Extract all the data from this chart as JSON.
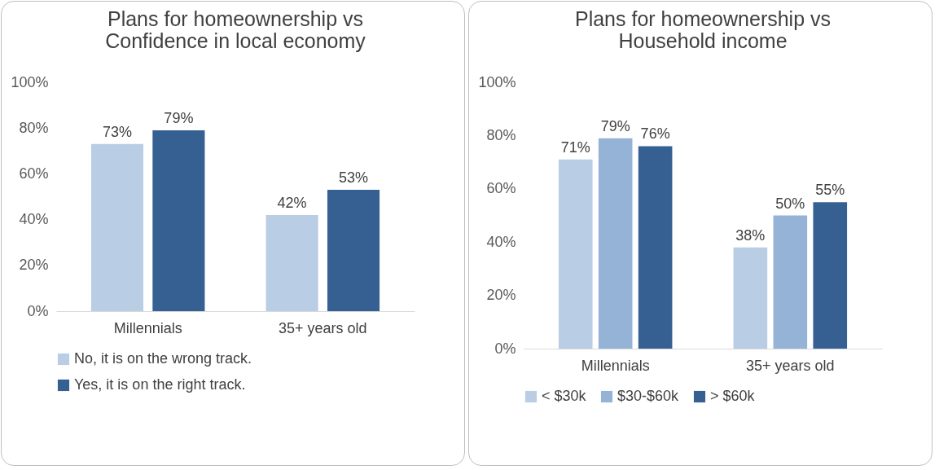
{
  "chart_data": [
    {
      "type": "bar",
      "title": "Plans for homeownership vs\nConfidence in local economy",
      "categories": [
        "Millennials",
        "35+ years old"
      ],
      "series": [
        {
          "name": "No, it is on the wrong track.",
          "color": "#b9cde5",
          "values": [
            73,
            42
          ],
          "value_labels": [
            "73%",
            "42%"
          ]
        },
        {
          "name": "Yes, it is on the right track.",
          "color": "#376092",
          "values": [
            79,
            53
          ],
          "value_labels": [
            "79%",
            "53%"
          ]
        }
      ],
      "ylim": [
        0,
        100
      ],
      "yticks": [
        {
          "value": 0,
          "label": "0%"
        },
        {
          "value": 20,
          "label": "20%"
        },
        {
          "value": 40,
          "label": "40%"
        },
        {
          "value": 60,
          "label": "60%"
        },
        {
          "value": 80,
          "label": "80%"
        },
        {
          "value": 100,
          "label": "100%"
        }
      ],
      "legend": "bottom"
    },
    {
      "type": "bar",
      "title": "Plans for homeownership vs\nHousehold income",
      "categories": [
        "Millennials",
        "35+ years old"
      ],
      "series": [
        {
          "name": "< $30k",
          "color": "#b9cde5",
          "values": [
            71,
            38
          ],
          "value_labels": [
            "71%",
            "38%"
          ]
        },
        {
          "name": "$30-$60k",
          "color": "#95b3d7",
          "values": [
            79,
            50
          ],
          "value_labels": [
            "79%",
            "50%"
          ]
        },
        {
          "name": "> $60k",
          "color": "#376092",
          "values": [
            76,
            55
          ],
          "value_labels": [
            "76%",
            "55%"
          ]
        }
      ],
      "ylim": [
        0,
        100
      ],
      "yticks": [
        {
          "value": 0,
          "label": "0%"
        },
        {
          "value": 20,
          "label": "20%"
        },
        {
          "value": 40,
          "label": "40%"
        },
        {
          "value": 60,
          "label": "60%"
        },
        {
          "value": 80,
          "label": "80%"
        },
        {
          "value": 100,
          "label": "100%"
        }
      ],
      "legend": "bottom"
    }
  ]
}
